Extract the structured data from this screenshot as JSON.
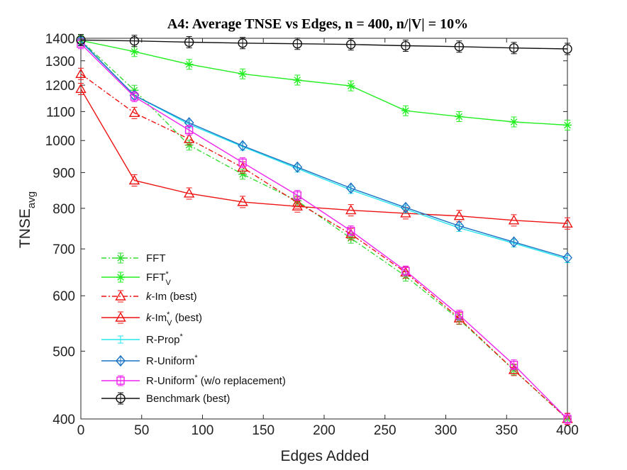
{
  "chart_data": {
    "type": "line",
    "title": "A4: Average TNSE vs Edges, n = 400, n/|V| = 10%",
    "xlabel": "Edges Added",
    "ylabel_main": "TNSE",
    "ylabel_sub": "avg",
    "yscale": "log",
    "xlim": [
      0,
      400
    ],
    "ylim": [
      400,
      1400
    ],
    "xticks": [
      0,
      50,
      100,
      150,
      200,
      250,
      300,
      350,
      400
    ],
    "xtick_labels": [
      "0",
      "50",
      "100",
      "150",
      "200",
      "250",
      "300",
      "350",
      "400"
    ],
    "yticks": [
      400,
      500,
      600,
      700,
      800,
      900,
      1000,
      1100,
      1200,
      1300,
      1400
    ],
    "ytick_labels": [
      "400",
      "500",
      "600",
      "700",
      "800",
      "900",
      "1000",
      "1100",
      "1200",
      "1300",
      "1400"
    ],
    "legend_position": "bottom-left",
    "series": [
      {
        "key": "fft",
        "legend": {
          "pre": "",
          "base": "FFT",
          "sup": "",
          "sub": "",
          "post": ""
        },
        "color": "#33dd33",
        "dash": "dashdot",
        "marker": "asterisk",
        "x": [
          0,
          44,
          89,
          133,
          178,
          222,
          267,
          311,
          356,
          400
        ],
        "y": [
          1390,
          1180,
          985,
          895,
          820,
          725,
          640,
          555,
          470,
          400
        ]
      },
      {
        "key": "fft_v",
        "legend": {
          "pre": "",
          "base": "FFT",
          "sup": "*",
          "sub": "V",
          "post": ""
        },
        "color": "#22ee22",
        "dash": "solid",
        "marker": "asterisk",
        "x": [
          0,
          44,
          89,
          133,
          178,
          222,
          267,
          311,
          356,
          400
        ],
        "y": [
          1390,
          1340,
          1285,
          1245,
          1220,
          1197,
          1103,
          1082,
          1063,
          1052
        ]
      },
      {
        "key": "kim",
        "legend": {
          "pre": "k",
          "base": "-Im",
          "sup": "",
          "sub": "",
          "post": " (best)"
        },
        "color": "#ee1111",
        "dash": "dashdot",
        "marker": "triangle",
        "x": [
          0,
          44,
          89,
          133,
          178,
          222,
          267,
          311,
          356,
          400
        ],
        "y": [
          1245,
          1095,
          1005,
          915,
          815,
          735,
          648,
          557,
          470,
          400
        ]
      },
      {
        "key": "kim_v",
        "legend": {
          "pre": "k",
          "base": "-Im",
          "sup": "*",
          "sub": "V",
          "post": " (best)"
        },
        "color": "#ee1111",
        "dash": "solid",
        "marker": "triangle",
        "x": [
          0,
          44,
          89,
          133,
          178,
          222,
          267,
          311,
          356,
          400
        ],
        "y": [
          1185,
          877,
          840,
          817,
          805,
          795,
          787,
          780,
          769,
          761
        ]
      },
      {
        "key": "rprop",
        "legend": {
          "pre": "",
          "base": "R-Prop",
          "sup": "*",
          "sub": "",
          "post": ""
        },
        "color": "#22e6f0",
        "dash": "solid",
        "marker": "none",
        "x": [
          0,
          44,
          89,
          133,
          178,
          222,
          267,
          311,
          356,
          400
        ],
        "y": [
          1385,
          1160,
          1055,
          980,
          912,
          850,
          798,
          750,
          713,
          677
        ]
      },
      {
        "key": "runif",
        "legend": {
          "pre": "",
          "base": "R-Uniform",
          "sup": "*",
          "sub": "",
          "post": ""
        },
        "color": "#1a72c4",
        "dash": "solid",
        "marker": "diamond",
        "x": [
          0,
          44,
          89,
          133,
          178,
          222,
          267,
          311,
          356,
          400
        ],
        "y": [
          1388,
          1160,
          1060,
          983,
          916,
          855,
          802,
          755,
          716,
          680
        ]
      },
      {
        "key": "runif_wo",
        "legend": {
          "pre": "",
          "base": "R-Uniform",
          "sup": "*",
          "sub": "",
          "post": " (w/o replacement)"
        },
        "color": "#ee22ee",
        "dash": "solid",
        "marker": "square",
        "x": [
          0,
          44,
          89,
          133,
          178,
          222,
          267,
          311,
          356,
          400
        ],
        "y": [
          1375,
          1155,
          1035,
          930,
          835,
          743,
          651,
          563,
          478,
          400
        ]
      },
      {
        "key": "bench",
        "legend": {
          "pre": "",
          "base": "Benchmark",
          "sup": "",
          "sub": "",
          "post": " (best)"
        },
        "color": "#111111",
        "dash": "solid",
        "marker": "circle",
        "x": [
          0,
          44,
          89,
          133,
          178,
          222,
          267,
          311,
          356,
          400
        ],
        "y": [
          1392,
          1388,
          1382,
          1378,
          1375,
          1372,
          1366,
          1362,
          1356,
          1352
        ]
      }
    ]
  }
}
